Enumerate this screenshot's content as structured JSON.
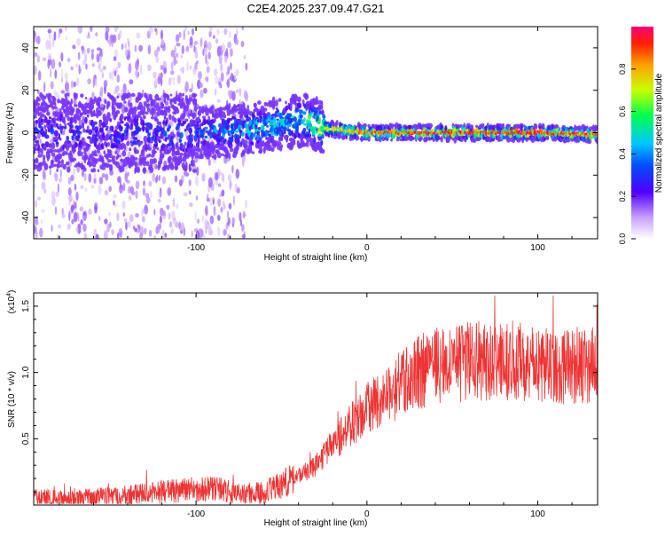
{
  "title": "C2E4.2025.237.09.47.G21",
  "chart_data": [
    {
      "type": "heatmap",
      "title": "C2E4.2025.237.09.47.G21",
      "xlabel": "Height of straight line (km)",
      "ylabel": "Frequency (Hz)",
      "xlim": [
        -195,
        135
      ],
      "ylim": [
        -50,
        50
      ],
      "xticks": [
        -100,
        0,
        100
      ],
      "xtick_labels": [
        "-100",
        "0",
        "100"
      ],
      "yticks": [
        -40,
        -20,
        0,
        20,
        40
      ],
      "ytick_labels": [
        "-40",
        "-20",
        "0",
        "20",
        "40"
      ],
      "colorbar": {
        "label": "Normalized spectral amplitude",
        "range": [
          0,
          1
        ],
        "ticks": [
          0.0,
          0.2,
          0.4,
          0.6,
          0.8
        ],
        "tick_labels": [
          "0.0",
          "0.2",
          "0.4",
          "0.6",
          "0.8"
        ]
      },
      "ridge": {
        "x": [
          -195,
          -150,
          -100,
          -75,
          -50,
          -35,
          -25,
          0,
          50,
          100,
          135
        ],
        "frequency": [
          0,
          0,
          0,
          1,
          4,
          6,
          2,
          0,
          0,
          0,
          -1
        ],
        "peak_amplitude": [
          0.3,
          0.3,
          0.35,
          0.45,
          0.55,
          0.6,
          0.75,
          0.9,
          0.95,
          0.95,
          0.9
        ]
      },
      "grid": false
    },
    {
      "type": "line",
      "xlabel": "Height of straight line (km)",
      "ylabel": "SNR (10 * v/v)",
      "scale_label": "(x10",
      "scale_exponent": "4",
      "scale_close": ")",
      "xlim": [
        -195,
        135
      ],
      "ylim": [
        0,
        1.6
      ],
      "xticks": [
        -100,
        0,
        100
      ],
      "xtick_labels": [
        "-100",
        "0",
        "100"
      ],
      "yticks": [
        0.5,
        1.0,
        1.5
      ],
      "ytick_labels": [
        "0.5",
        "1.0",
        "1.5"
      ],
      "series": [
        {
          "name": "SNR",
          "color": "#ee3333",
          "x": [
            -195,
            -170,
            -140,
            -120,
            -100,
            -85,
            -75,
            -60,
            -50,
            -40,
            -30,
            -20,
            -10,
            0,
            10,
            20,
            30,
            40,
            60,
            80,
            100,
            120,
            135
          ],
          "values": [
            0.05,
            0.05,
            0.07,
            0.1,
            0.12,
            0.12,
            0.08,
            0.1,
            0.15,
            0.22,
            0.3,
            0.45,
            0.6,
            0.72,
            0.8,
            0.92,
            1.0,
            1.05,
            1.08,
            1.1,
            1.05,
            1.05,
            1.05
          ]
        }
      ],
      "grid": false
    }
  ]
}
